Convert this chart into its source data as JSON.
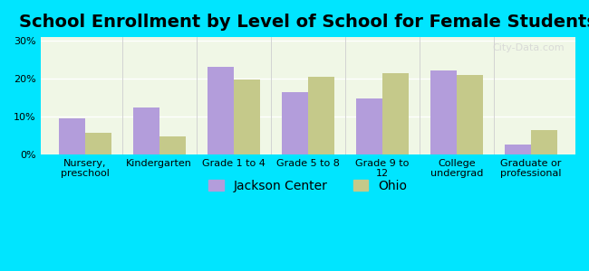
{
  "title": "School Enrollment by Level of School for Female Students",
  "categories": [
    "Nursery,\npreschool",
    "Kindergarten",
    "Grade 1 to 4",
    "Grade 5 to 8",
    "Grade 9 to\n12",
    "College\nundergrad",
    "Graduate or\nprofessional"
  ],
  "jackson_center": [
    9.5,
    12.5,
    23.2,
    16.5,
    14.7,
    22.2,
    2.5
  ],
  "ohio": [
    5.8,
    4.7,
    19.8,
    20.6,
    21.4,
    20.9,
    6.5
  ],
  "jackson_color": "#b39ddb",
  "ohio_color": "#c5c98a",
  "background_color": "#00e5ff",
  "plot_bg_start": "#f0f7e6",
  "plot_bg_end": "#ffffff",
  "yticks": [
    0,
    10,
    20,
    30
  ],
  "ylim": [
    0,
    31
  ],
  "ylabel_format": "%",
  "legend_labels": [
    "Jackson Center",
    "Ohio"
  ],
  "bar_width": 0.35,
  "title_fontsize": 14,
  "tick_fontsize": 8,
  "legend_fontsize": 10
}
